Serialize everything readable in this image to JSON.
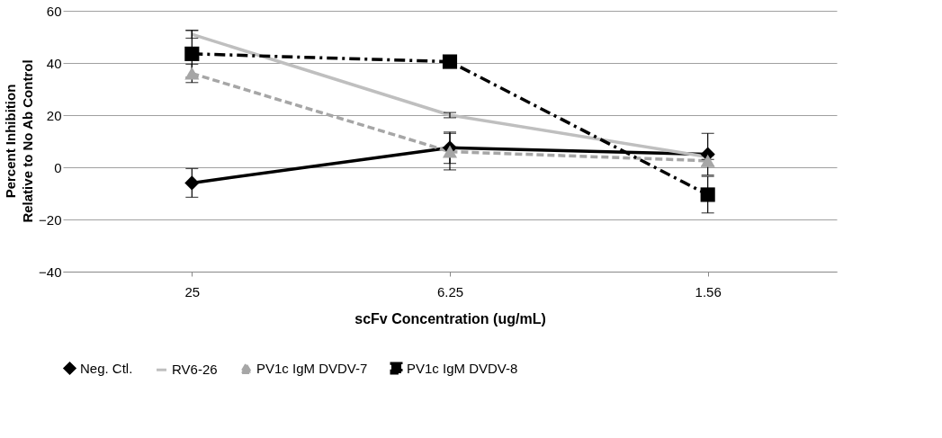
{
  "chart_data": {
    "type": "line",
    "xlabel": "scFv Concentration (ug/mL)",
    "ylabel": "Percent Inhibition\nRelative to No Ab Control",
    "categories": [
      "25",
      "6.25",
      "1.56"
    ],
    "series": [
      {
        "name": "Neg. Ctl.",
        "color": "#000000",
        "values": [
          -6,
          7.5,
          5
        ],
        "errors": [
          5.5,
          6,
          8
        ],
        "marker": "diamond",
        "line_style": "solid"
      },
      {
        "name": "RV6-26",
        "color": "#bfbfbf",
        "values": [
          51,
          20,
          4
        ],
        "errors": [
          1.5,
          1,
          1
        ],
        "marker": "none",
        "line_style": "solid"
      },
      {
        "name": "PV1c IgM DVDV-7",
        "color": "#a6a6a6",
        "values": [
          36,
          6,
          2.5
        ],
        "errors": [
          3.5,
          7,
          2
        ],
        "marker": "triangle",
        "line_style": "dashed"
      },
      {
        "name": "PV1c IgM DVDV-8",
        "color": "#000000",
        "values": [
          43.5,
          40.5,
          -10.5
        ],
        "errors": [
          9,
          1,
          7
        ],
        "marker": "square",
        "line_style": "dashdot"
      }
    ],
    "ylim": [
      -40,
      60
    ],
    "yticks": [
      -40,
      -20,
      0,
      20,
      40,
      60
    ],
    "grid": "y",
    "legend": "bottom"
  }
}
